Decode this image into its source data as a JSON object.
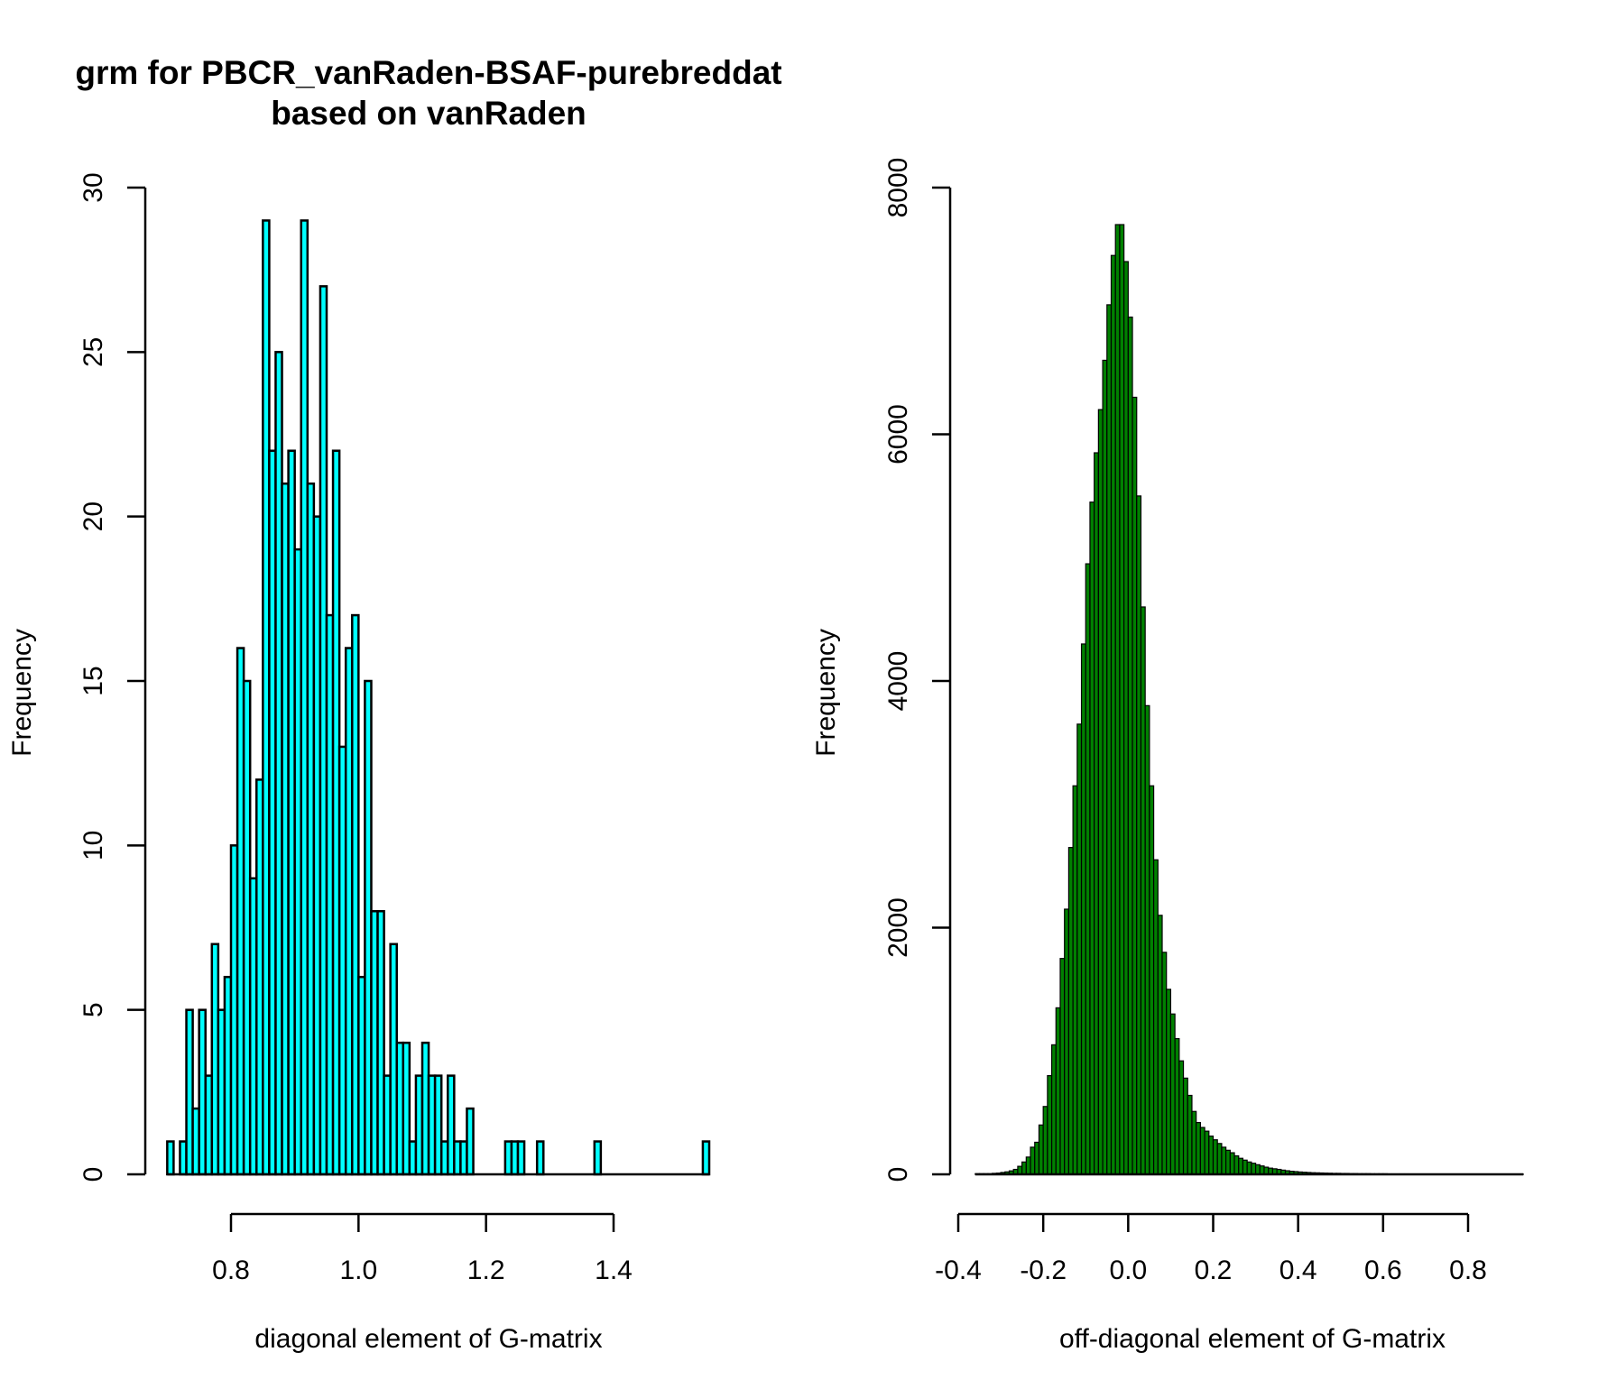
{
  "chart_data": [
    {
      "type": "bar",
      "title": "grm for PBCR_vanRaden-BSAF-purebreddat",
      "subtitle": "based on vanRaden",
      "xlabel": "diagonal element of G-matrix",
      "ylabel": "Frequency",
      "xlim": [
        0.7,
        1.55
      ],
      "ylim": [
        0,
        30
      ],
      "xticks": [
        "0.8",
        "1.0",
        "1.2",
        "1.4"
      ],
      "yticks": [
        "0",
        "5",
        "10",
        "15",
        "20",
        "25",
        "30"
      ],
      "bar_color": "#00ffff",
      "bin_start": 0.7,
      "bin_width": 0.01,
      "values": [
        1,
        0,
        1,
        5,
        2,
        5,
        3,
        7,
        5,
        6,
        10,
        16,
        15,
        9,
        12,
        29,
        22,
        25,
        21,
        22,
        19,
        29,
        21,
        20,
        27,
        17,
        22,
        13,
        16,
        17,
        6,
        15,
        8,
        8,
        3,
        7,
        4,
        4,
        1,
        3,
        4,
        3,
        3,
        1,
        3,
        1,
        1,
        2,
        0,
        0,
        0,
        0,
        0,
        1,
        1,
        1,
        0,
        0,
        1,
        0,
        0,
        0,
        0,
        0,
        0,
        0,
        0,
        1,
        0,
        0,
        0,
        0,
        0,
        0,
        0,
        0,
        0,
        0,
        0,
        0,
        0,
        0,
        0,
        0,
        1
      ]
    },
    {
      "type": "bar",
      "title": "",
      "xlabel": "off-diagonal element of G-matrix",
      "ylabel": "Frequency",
      "xlim": [
        -0.36,
        0.9
      ],
      "ylim": [
        0,
        8000
      ],
      "xticks": [
        "-0.4",
        "-0.2",
        "0.0",
        "0.2",
        "0.4",
        "0.6",
        "0.8"
      ],
      "yticks": [
        "0",
        "2000",
        "4000",
        "6000",
        "8000"
      ],
      "bar_color": "#008000",
      "bin_start": -0.36,
      "bin_width": 0.01,
      "values": [
        5,
        5,
        5,
        5,
        8,
        10,
        15,
        20,
        28,
        40,
        65,
        100,
        140,
        220,
        260,
        400,
        550,
        800,
        1050,
        1350,
        1750,
        2150,
        2650,
        3150,
        3650,
        4300,
        4950,
        5450,
        5850,
        6200,
        6600,
        7050,
        7450,
        7700,
        7700,
        7400,
        6950,
        6300,
        5500,
        4600,
        3800,
        3150,
        2550,
        2100,
        1800,
        1500,
        1300,
        1100,
        920,
        780,
        640,
        510,
        420,
        380,
        350,
        310,
        280,
        250,
        220,
        195,
        175,
        150,
        130,
        115,
        100,
        90,
        78,
        68,
        58,
        50,
        45,
        40,
        34,
        29,
        25,
        22,
        19,
        17,
        15,
        13,
        12,
        11,
        10,
        9,
        8,
        8,
        7,
        7,
        6,
        6,
        5,
        5,
        5,
        4,
        4,
        4,
        4,
        3,
        3,
        3,
        3,
        3,
        2,
        2,
        2,
        2,
        2,
        2,
        2,
        2,
        2,
        2,
        2,
        2,
        2,
        2,
        1,
        1,
        1,
        1,
        1,
        1,
        1,
        1,
        1,
        1,
        1,
        1,
        1
      ]
    }
  ]
}
